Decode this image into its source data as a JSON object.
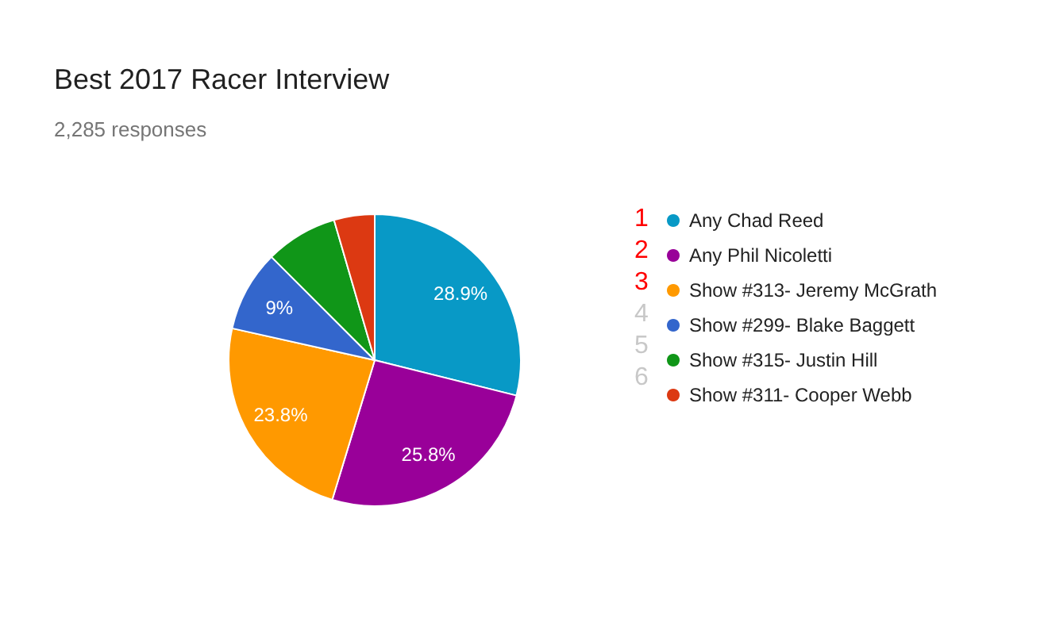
{
  "chart_data": {
    "type": "pie",
    "title": "Best 2017 Racer Interview",
    "subtitle": "2,285 responses",
    "categories": [
      "Any Chad Reed",
      "Any Phil Nicoletti",
      "Show #313- Jeremy McGrath",
      "Show #299- Blake Baggett",
      "Show #315- Justin Hill",
      "Show #311- Cooper Webb"
    ],
    "values": [
      28.9,
      25.8,
      23.8,
      9,
      8,
      4.5
    ],
    "colors": [
      "#0899c6",
      "#990099",
      "#ff9900",
      "#3366cc",
      "#109618",
      "#dc3912"
    ],
    "value_labels": [
      "28.9%",
      "25.8%",
      "23.8%",
      "9%",
      null,
      null
    ],
    "legend": "right",
    "annotations": [
      "1",
      "2",
      "3",
      "4",
      "5",
      "6"
    ]
  }
}
